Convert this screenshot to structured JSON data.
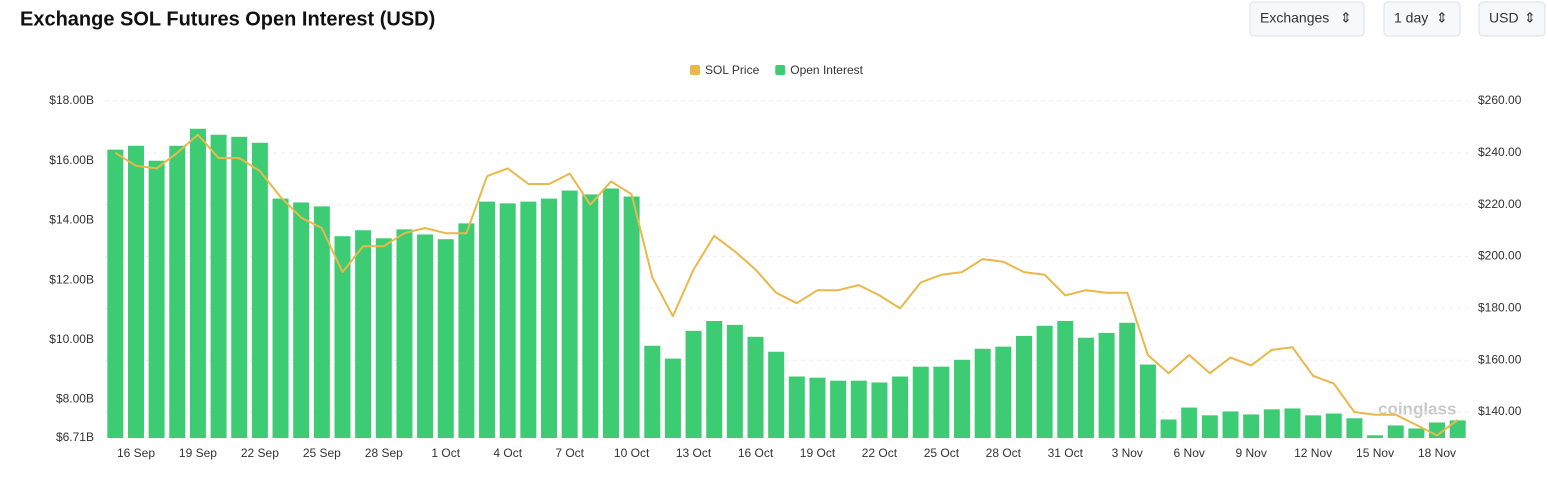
{
  "ui": {
    "controls": [
      "Exchanges",
      "1 day",
      "USD"
    ],
    "watermark": "coinglass"
  },
  "chart_data": {
    "type": "bar-line",
    "title": "Exchange SOL Futures Open Interest (USD)",
    "categories": [
      null,
      "16 Sep",
      null,
      null,
      "19 Sep",
      null,
      null,
      "22 Sep",
      null,
      null,
      "25 Sep",
      null,
      null,
      "28 Sep",
      null,
      null,
      "1 Oct",
      null,
      null,
      "4 Oct",
      null,
      null,
      "7 Oct",
      null,
      null,
      "10 Oct",
      null,
      null,
      "13 Oct",
      null,
      null,
      "16 Oct",
      null,
      null,
      "19 Oct",
      null,
      null,
      "22 Oct",
      null,
      null,
      "25 Oct",
      null,
      null,
      "28 Oct",
      null,
      null,
      "31 Oct",
      null,
      null,
      "3 Nov",
      null,
      null,
      "6 Nov",
      null,
      null,
      "9 Nov",
      null,
      null,
      "12 Nov",
      null,
      null,
      "15 Nov",
      null,
      null,
      "18 Nov",
      null
    ],
    "series": [
      {
        "name": "SOL Price",
        "color": "#e8b84a",
        "axis": "y2",
        "kind": "line",
        "values": [
          240,
          235,
          234,
          240,
          247,
          238,
          238,
          233,
          223,
          215,
          211,
          194,
          204,
          204,
          209,
          211,
          209,
          209,
          231,
          234,
          228,
          228,
          232,
          220,
          229,
          224,
          192,
          177,
          195,
          208,
          202,
          195,
          186,
          182,
          187,
          187,
          189,
          185,
          180,
          190,
          193,
          194,
          199,
          198,
          194,
          193,
          185,
          187,
          186,
          186,
          162,
          155,
          162,
          155,
          161,
          158,
          164,
          165,
          154,
          151,
          140,
          139,
          139,
          135,
          131,
          137
        ]
      },
      {
        "name": "Open Interest",
        "color": "#3dcc74",
        "kind": "bar",
        "values": [
          16.37,
          16.5,
          16.0,
          16.5,
          17.07,
          16.87,
          16.8,
          16.6,
          14.73,
          14.6,
          14.47,
          13.47,
          13.67,
          13.4,
          13.7,
          13.53,
          13.37,
          13.9,
          14.63,
          14.57,
          14.63,
          14.73,
          15.0,
          14.87,
          15.07,
          14.8,
          9.8,
          9.37,
          10.3,
          10.63,
          10.5,
          10.1,
          9.6,
          8.77,
          8.73,
          8.63,
          8.63,
          8.57,
          8.77,
          9.1,
          9.1,
          9.33,
          9.7,
          9.77,
          10.13,
          10.47,
          10.63,
          10.07,
          10.23,
          10.57,
          9.17,
          7.33,
          7.73,
          7.47,
          7.6,
          7.5,
          7.67,
          7.7,
          7.47,
          7.53,
          7.37,
          6.8,
          7.13,
          7.03,
          7.23,
          7.3
        ]
      }
    ],
    "ylim": [
      6.71,
      18.0
    ],
    "yticks": [
      {
        "value": 6.71,
        "label": "$6.71B"
      },
      {
        "value": 8,
        "label": "$8.00B"
      },
      {
        "value": 10,
        "label": "$10.00B"
      },
      {
        "value": 12,
        "label": "$12.00B"
      },
      {
        "value": 14,
        "label": "$14.00B"
      },
      {
        "value": 16,
        "label": "$16.00B"
      },
      {
        "value": 18,
        "label": "$18.00B"
      }
    ],
    "y2lim": [
      130,
      260
    ],
    "y2ticks": [
      {
        "value": 140,
        "label": "$140.00"
      },
      {
        "value": 160,
        "label": "$160.00"
      },
      {
        "value": 180,
        "label": "$180.00"
      },
      {
        "value": 200,
        "label": "$200.00"
      },
      {
        "value": 220,
        "label": "$220.00"
      },
      {
        "value": 240,
        "label": "$240.00"
      },
      {
        "value": 260,
        "label": "$260.00"
      }
    ],
    "grid": true,
    "legend": "top"
  }
}
